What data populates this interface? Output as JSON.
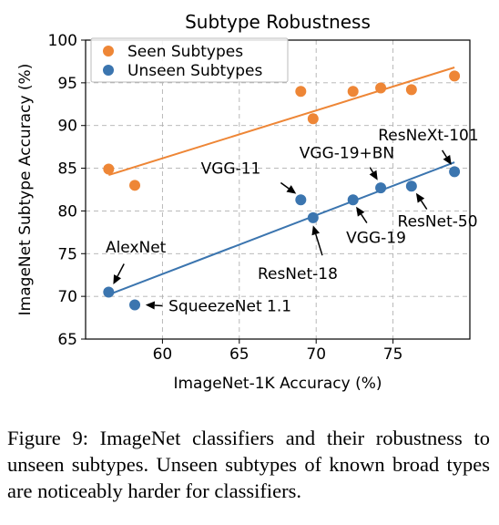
{
  "chart_data": {
    "type": "scatter",
    "title": "Subtype Robustness",
    "xlabel": "ImageNet-1K Accuracy (%)",
    "ylabel": "ImageNet Subtype Accuracy (%)",
    "xlim": [
      55,
      80
    ],
    "ylim": [
      65,
      100
    ],
    "xticks": [
      60,
      65,
      70,
      75
    ],
    "yticks": [
      65,
      70,
      75,
      80,
      85,
      90,
      95,
      100
    ],
    "grid": true,
    "legend_position": "top-left",
    "series": [
      {
        "name": "Seen Subtypes",
        "color": "#ee8636",
        "points": [
          {
            "x": 56.5,
            "y": 84.9
          },
          {
            "x": 58.2,
            "y": 83.0
          },
          {
            "x": 69.0,
            "y": 94.0
          },
          {
            "x": 69.8,
            "y": 90.8
          },
          {
            "x": 72.4,
            "y": 94.0
          },
          {
            "x": 74.2,
            "y": 94.4
          },
          {
            "x": 76.2,
            "y": 94.2
          },
          {
            "x": 79.0,
            "y": 95.8
          }
        ],
        "trend": [
          [
            56.5,
            84.2
          ],
          [
            79.0,
            96.8
          ]
        ]
      },
      {
        "name": "Unseen Subtypes",
        "color": "#3b75af",
        "points": [
          {
            "x": 56.5,
            "y": 70.5
          },
          {
            "x": 58.2,
            "y": 69.0
          },
          {
            "x": 69.0,
            "y": 81.3
          },
          {
            "x": 69.8,
            "y": 79.2
          },
          {
            "x": 72.4,
            "y": 81.3
          },
          {
            "x": 74.2,
            "y": 82.7
          },
          {
            "x": 76.2,
            "y": 82.9
          },
          {
            "x": 79.0,
            "y": 84.6
          }
        ],
        "trend": [
          [
            56.5,
            70.2
          ],
          [
            79.0,
            85.7
          ]
        ]
      }
    ],
    "annotations": [
      {
        "text": "AlexNet",
        "point": [
          56.5,
          70.5
        ],
        "text_at": [
          56.3,
          75.8
        ],
        "anchor": "start",
        "arrow": [
          [
            57.5,
            73.8
          ],
          [
            56.8,
            71.4
          ]
        ]
      },
      {
        "text": "SqueezeNet 1.1",
        "point": [
          58.2,
          69.0
        ],
        "text_at": [
          60.4,
          68.9
        ],
        "anchor": "start",
        "arrow": [
          [
            60.0,
            68.9
          ],
          [
            58.9,
            69.0
          ]
        ]
      },
      {
        "text": "VGG-11",
        "point": [
          69.0,
          81.3
        ],
        "text_at": [
          62.5,
          85.0
        ],
        "anchor": "start",
        "arrow": [
          [
            67.7,
            83.3
          ],
          [
            68.7,
            82.0
          ]
        ]
      },
      {
        "text": "ResNet-18",
        "point": [
          69.8,
          79.2
        ],
        "text_at": [
          68.8,
          72.7
        ],
        "anchor": "middle",
        "arrow": [
          [
            70.4,
            74.8
          ],
          [
            69.8,
            78.3
          ]
        ]
      },
      {
        "text": "VGG-19+BN",
        "point": [
          74.2,
          82.7
        ],
        "text_at": [
          72.0,
          86.8
        ],
        "anchor": "middle",
        "arrow": [
          [
            73.5,
            85.1
          ],
          [
            74.0,
            83.6
          ]
        ]
      },
      {
        "text": "ResNeXt-101",
        "point": [
          79.0,
          84.6
        ],
        "text_at": [
          77.3,
          88.9
        ],
        "anchor": "middle",
        "arrow": [
          [
            78.2,
            87.1
          ],
          [
            78.8,
            85.4
          ]
        ]
      },
      {
        "text": "VGG-19",
        "point": [
          72.4,
          81.3
        ],
        "text_at": [
          73.9,
          76.9
        ],
        "anchor": "middle",
        "arrow": [
          [
            73.3,
            78.6
          ],
          [
            72.6,
            80.5
          ]
        ]
      },
      {
        "text": "ResNet-50",
        "point": [
          76.2,
          82.9
        ],
        "text_at": [
          77.9,
          78.8
        ],
        "anchor": "middle",
        "arrow": [
          [
            77.2,
            80.2
          ],
          [
            76.5,
            82.1
          ]
        ]
      }
    ]
  },
  "caption": "Figure 9: ImageNet classifiers and their robustness to unseen subtypes. Unseen subtypes of known broad types are noticeably harder for classifiers."
}
